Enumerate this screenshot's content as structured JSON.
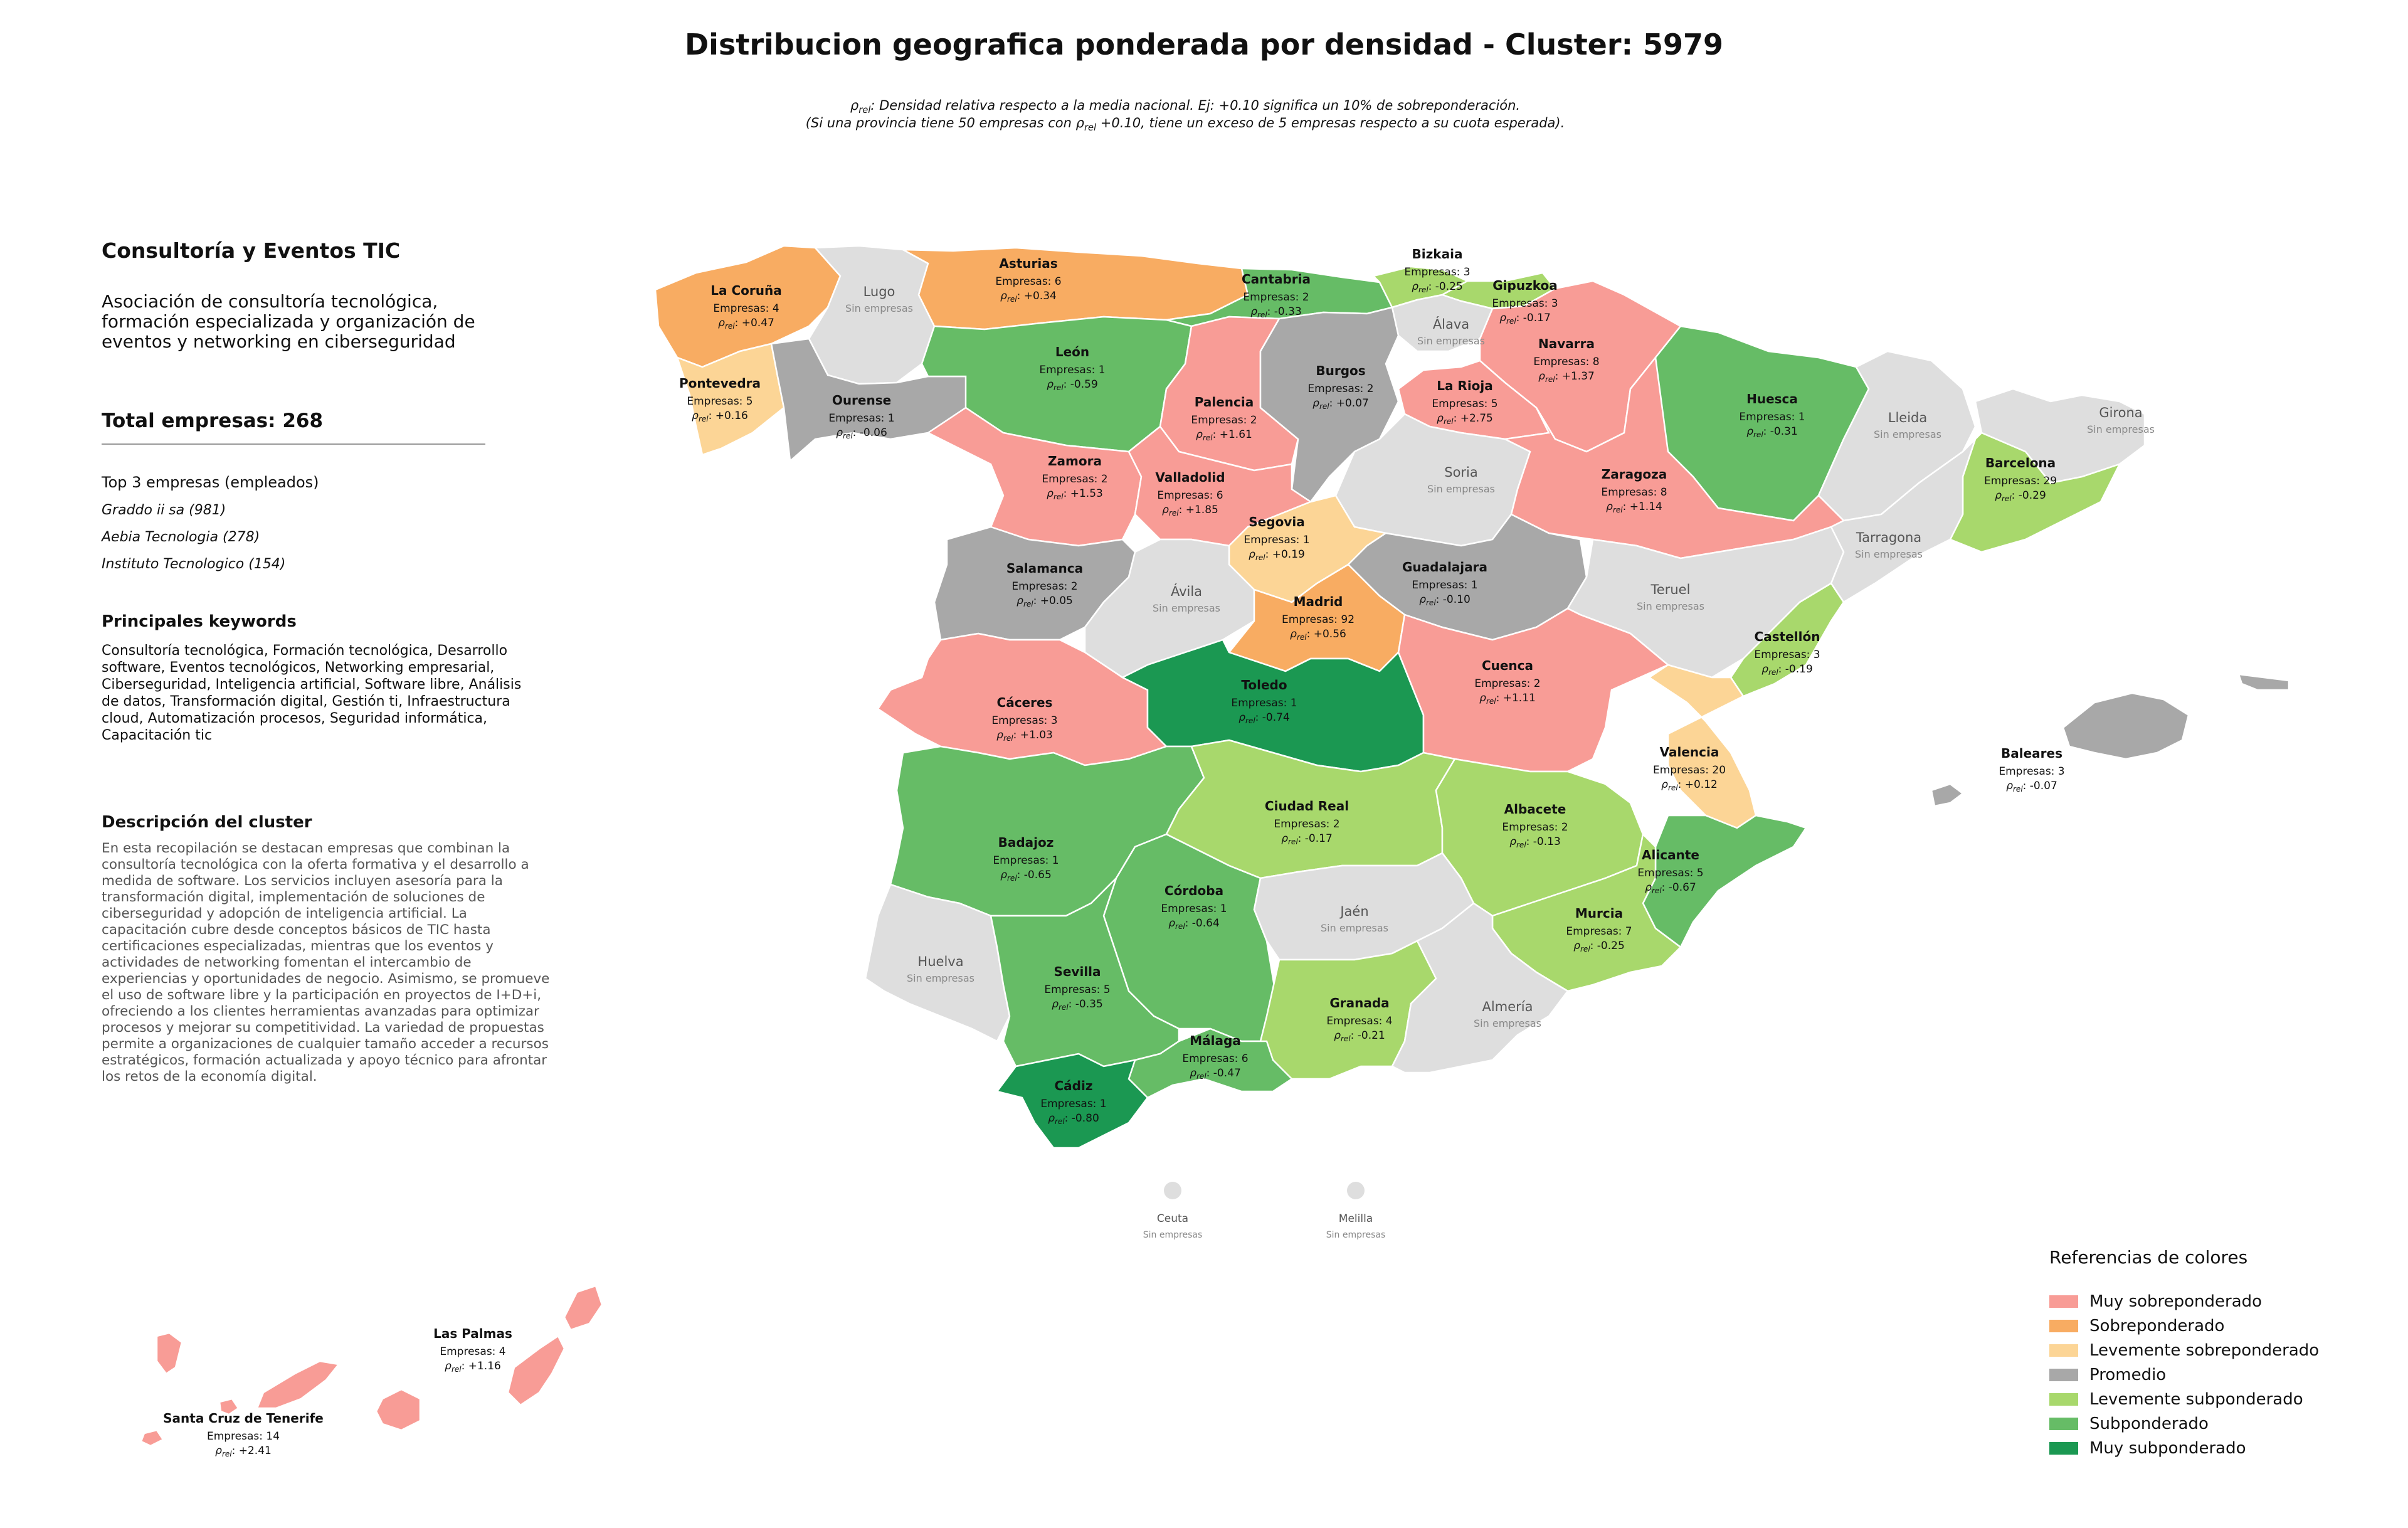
{
  "title": "Distribucion geografica ponderada por densidad - Cluster: 5979",
  "subtitle_line1": "ρrel: Densidad relativa respecto a la media nacional. Ej: +0.10 significa un 10% de sobreponderación.",
  "subtitle_line2": "(Si una provincia tiene 50 empresas con ρrel +0.10, tiene un exceso de 5 empresas respecto a su cuota esperada).",
  "panel": {
    "cluster_name": "Consultoría y Eventos TIC",
    "cluster_description": "Asociación de consultoría tecnológica, formación especializada y organización de eventos y networking en ciberseguridad",
    "total_label": "Total empresas: 268",
    "top3_title": "Top 3 empresas (empleados)",
    "top3": [
      "Graddo ii sa (981)",
      "Aebia Tecnologia (278)",
      "Instituto Tecnologico (154)"
    ],
    "keywords_title": "Principales keywords",
    "keywords": "Consultoría tecnológica, Formación tecnológica, Desarrollo software, Eventos tecnológicos, Networking empresarial, Ciberseguridad, Inteligencia artificial, Software libre, Análisis de datos, Transformación digital, Gestión ti, Infraestructura cloud, Automatización procesos, Seguridad informática, Capacitación tic",
    "description_title": "Descripción del cluster",
    "description": "En esta recopilación se destacan empresas que combinan la consultoría tecnológica con la oferta formativa y el desarrollo a medida de software. Los servicios incluyen asesoría para la transformación digital, implementación de soluciones de ciberseguridad y adopción de inteligencia artificial. La capacitación cubre desde conceptos básicos de TIC hasta certificaciones especializadas, mientras que los eventos y actividades de networking fomentan el intercambio de experiencias y oportunidades de negocio. Asimismo, se promueve el uso de software libre y la participación en proyectos de I+D+i, ofreciendo a los clientes herramientas avanzadas para optimizar procesos y mejorar su competitividad. La variedad de propuestas permite a organizaciones de cualquier tamaño acceder a recursos estratégicos, formación actualizada y apoyo técnico para afrontar los retos de la economía digital."
  },
  "legend": {
    "title": "Referencias de colores",
    "items": [
      {
        "label": "Muy sobreponderado",
        "color": "#f89c96"
      },
      {
        "label": "Sobreponderado",
        "color": "#f8ac62"
      },
      {
        "label": "Levemente sobreponderado",
        "color": "#fcd596"
      },
      {
        "label": "Promedio",
        "color": "#a8a8a8"
      },
      {
        "label": "Levemente subponderado",
        "color": "#a8d86c"
      },
      {
        "label": "Subponderado",
        "color": "#66bc66"
      },
      {
        "label": "Muy subponderado",
        "color": "#1b9852"
      }
    ]
  },
  "no_data_color": "#dedede",
  "labels": {
    "empresas_prefix": "Empresas: ",
    "rho_prefix": "ρrel: ",
    "sin_empresas": "Sin empresas"
  },
  "provinces": [
    {
      "name": "La Coruña",
      "empresas": 4,
      "rho": "+0.47",
      "category": "Sobreponderado"
    },
    {
      "name": "Lugo",
      "category": "Sin empresas"
    },
    {
      "name": "Asturias",
      "empresas": 6,
      "rho": "+0.34",
      "category": "Sobreponderado"
    },
    {
      "name": "Cantabria",
      "empresas": 2,
      "rho": "-0.33",
      "category": "Subponderado"
    },
    {
      "name": "Bizkaia",
      "empresas": 3,
      "rho": "-0.25",
      "category": "Levemente subponderado"
    },
    {
      "name": "Gipuzkoa",
      "empresas": 3,
      "rho": "-0.17",
      "category": "Levemente subponderado"
    },
    {
      "name": "Álava",
      "category": "Sin empresas"
    },
    {
      "name": "Navarra",
      "empresas": 8,
      "rho": "+1.37",
      "category": "Muy sobreponderado"
    },
    {
      "name": "Pontevedra",
      "empresas": 5,
      "rho": "+0.16",
      "category": "Levemente sobreponderado"
    },
    {
      "name": "Ourense",
      "empresas": 1,
      "rho": "-0.06",
      "category": "Promedio"
    },
    {
      "name": "León",
      "empresas": 1,
      "rho": "-0.59",
      "category": "Subponderado"
    },
    {
      "name": "Palencia",
      "empresas": 2,
      "rho": "+1.61",
      "category": "Muy sobreponderado"
    },
    {
      "name": "Burgos",
      "empresas": 2,
      "rho": "+0.07",
      "category": "Promedio"
    },
    {
      "name": "La Rioja",
      "empresas": 5,
      "rho": "+2.75",
      "category": "Muy sobreponderado"
    },
    {
      "name": "Huesca",
      "empresas": 1,
      "rho": "-0.31",
      "category": "Subponderado"
    },
    {
      "name": "Lleida",
      "category": "Sin empresas"
    },
    {
      "name": "Girona",
      "category": "Sin empresas"
    },
    {
      "name": "Barcelona",
      "empresas": 29,
      "rho": "-0.29",
      "category": "Levemente subponderado"
    },
    {
      "name": "Zamora",
      "empresas": 2,
      "rho": "+1.53",
      "category": "Muy sobreponderado"
    },
    {
      "name": "Valladolid",
      "empresas": 6,
      "rho": "+1.85",
      "category": "Muy sobreponderado"
    },
    {
      "name": "Soria",
      "category": "Sin empresas"
    },
    {
      "name": "Zaragoza",
      "empresas": 8,
      "rho": "+1.14",
      "category": "Muy sobreponderado"
    },
    {
      "name": "Tarragona",
      "category": "Sin empresas"
    },
    {
      "name": "Segovia",
      "empresas": 1,
      "rho": "+0.19",
      "category": "Levemente sobreponderado"
    },
    {
      "name": "Salamanca",
      "empresas": 2,
      "rho": "+0.05",
      "category": "Promedio"
    },
    {
      "name": "Guadalajara",
      "empresas": 1,
      "rho": "-0.10",
      "category": "Promedio"
    },
    {
      "name": "Ávila",
      "category": "Sin empresas"
    },
    {
      "name": "Madrid",
      "empresas": 92,
      "rho": "+0.56",
      "category": "Sobreponderado"
    },
    {
      "name": "Teruel",
      "category": "Sin empresas"
    },
    {
      "name": "Castellón",
      "empresas": 3,
      "rho": "-0.19",
      "category": "Levemente subponderado"
    },
    {
      "name": "Cáceres",
      "empresas": 3,
      "rho": "+1.03",
      "category": "Muy sobreponderado"
    },
    {
      "name": "Toledo",
      "empresas": 1,
      "rho": "-0.74",
      "category": "Muy subponderado"
    },
    {
      "name": "Cuenca",
      "empresas": 2,
      "rho": "+1.11",
      "category": "Muy sobreponderado"
    },
    {
      "name": "Valencia",
      "empresas": 20,
      "rho": "+0.12",
      "category": "Levemente sobreponderado"
    },
    {
      "name": "Baleares",
      "empresas": 3,
      "rho": "-0.07",
      "category": "Promedio"
    },
    {
      "name": "Badajoz",
      "empresas": 1,
      "rho": "-0.65",
      "category": "Subponderado"
    },
    {
      "name": "Ciudad Real",
      "empresas": 2,
      "rho": "-0.17",
      "category": "Levemente subponderado"
    },
    {
      "name": "Albacete",
      "empresas": 2,
      "rho": "-0.13",
      "category": "Levemente subponderado"
    },
    {
      "name": "Alicante",
      "empresas": 5,
      "rho": "-0.67",
      "category": "Subponderado"
    },
    {
      "name": "Córdoba",
      "empresas": 1,
      "rho": "-0.64",
      "category": "Subponderado"
    },
    {
      "name": "Jaén",
      "category": "Sin empresas"
    },
    {
      "name": "Murcia",
      "empresas": 7,
      "rho": "-0.25",
      "category": "Levemente subponderado"
    },
    {
      "name": "Huelva",
      "category": "Sin empresas"
    },
    {
      "name": "Sevilla",
      "empresas": 5,
      "rho": "-0.35",
      "category": "Subponderado"
    },
    {
      "name": "Granada",
      "empresas": 4,
      "rho": "-0.21",
      "category": "Levemente subponderado"
    },
    {
      "name": "Almería",
      "category": "Sin empresas"
    },
    {
      "name": "Málaga",
      "empresas": 6,
      "rho": "-0.47",
      "category": "Subponderado"
    },
    {
      "name": "Cádiz",
      "empresas": 1,
      "rho": "-0.80",
      "category": "Muy subponderado"
    },
    {
      "name": "Ceuta",
      "category": "Sin empresas"
    },
    {
      "name": "Melilla",
      "category": "Sin empresas"
    },
    {
      "name": "Las Palmas",
      "empresas": 4,
      "rho": "+1.16",
      "category": "Muy sobreponderado"
    },
    {
      "name": "Santa Cruz de Tenerife",
      "empresas": 14,
      "rho": "+2.41",
      "category": "Muy sobreponderado"
    }
  ]
}
